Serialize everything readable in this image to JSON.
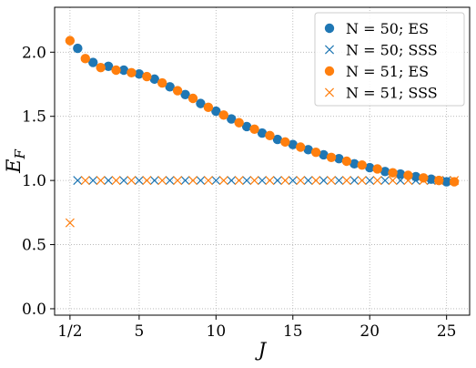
{
  "chart_data": {
    "type": "scatter",
    "xlabel": "J",
    "ylabel": "E_F",
    "xlim": [
      -0.5,
      26.5
    ],
    "ylim": [
      -0.05,
      2.35
    ],
    "grid": true,
    "grid_style": "dotted",
    "legend_position": "top-right",
    "xticks": [
      {
        "value": 0.5,
        "label": "1/2"
      },
      {
        "value": 5,
        "label": "5"
      },
      {
        "value": 10,
        "label": "10"
      },
      {
        "value": 15,
        "label": "15"
      },
      {
        "value": 20,
        "label": "20"
      },
      {
        "value": 25,
        "label": "25"
      }
    ],
    "yticks": [
      {
        "value": 0.0,
        "label": "0.0"
      },
      {
        "value": 0.5,
        "label": "0.5"
      },
      {
        "value": 1.0,
        "label": "1.0"
      },
      {
        "value": 1.5,
        "label": "1.5"
      },
      {
        "value": 2.0,
        "label": "2.0"
      }
    ],
    "series": [
      {
        "name": "N = 50; ES",
        "marker": "circle",
        "color": "#1f77b4",
        "x": [
          1,
          2,
          3,
          4,
          5,
          6,
          7,
          8,
          9,
          10,
          11,
          12,
          13,
          14,
          15,
          16,
          17,
          18,
          19,
          20,
          21,
          22,
          23,
          24,
          25
        ],
        "y": [
          2.03,
          1.92,
          1.89,
          1.86,
          1.83,
          1.79,
          1.73,
          1.67,
          1.6,
          1.54,
          1.48,
          1.42,
          1.37,
          1.32,
          1.28,
          1.24,
          1.2,
          1.17,
          1.13,
          1.1,
          1.07,
          1.05,
          1.03,
          1.01,
          0.99
        ]
      },
      {
        "name": "N = 50; SSS",
        "marker": "x",
        "color": "#1f77b4",
        "x": [
          1,
          2,
          3,
          4,
          5,
          6,
          7,
          8,
          9,
          10,
          11,
          12,
          13,
          14,
          15,
          16,
          17,
          18,
          19,
          20,
          21,
          22,
          23,
          24,
          25
        ],
        "y": [
          1,
          1,
          1,
          1,
          1,
          1,
          1,
          1,
          1,
          1,
          1,
          1,
          1,
          1,
          1,
          1,
          1,
          1,
          1,
          1,
          1,
          1,
          1,
          1,
          1
        ]
      },
      {
        "name": "N = 51; ES",
        "marker": "circle",
        "color": "#ff7f0e",
        "x": [
          0.5,
          1.5,
          2.5,
          3.5,
          4.5,
          5.5,
          6.5,
          7.5,
          8.5,
          9.5,
          10.5,
          11.5,
          12.5,
          13.5,
          14.5,
          15.5,
          16.5,
          17.5,
          18.5,
          19.5,
          20.5,
          21.5,
          22.5,
          23.5,
          24.5,
          25.5
        ],
        "y": [
          2.09,
          1.95,
          1.88,
          1.86,
          1.84,
          1.81,
          1.76,
          1.7,
          1.64,
          1.57,
          1.51,
          1.45,
          1.4,
          1.35,
          1.3,
          1.26,
          1.22,
          1.18,
          1.15,
          1.12,
          1.09,
          1.06,
          1.04,
          1.02,
          1.0,
          0.99
        ]
      },
      {
        "name": "N = 51; SSS",
        "marker": "x",
        "color": "#ff7f0e",
        "x": [
          0.5,
          1.5,
          2.5,
          3.5,
          4.5,
          5.5,
          6.5,
          7.5,
          8.5,
          9.5,
          10.5,
          11.5,
          12.5,
          13.5,
          14.5,
          15.5,
          16.5,
          17.5,
          18.5,
          19.5,
          20.5,
          21.5,
          22.5,
          23.5,
          24.5,
          25.5
        ],
        "y": [
          0.67,
          1,
          1,
          1,
          1,
          1,
          1,
          1,
          1,
          1,
          1,
          1,
          1,
          1,
          1,
          1,
          1,
          1,
          1,
          1,
          1,
          1,
          1,
          1,
          1,
          1
        ]
      }
    ]
  }
}
